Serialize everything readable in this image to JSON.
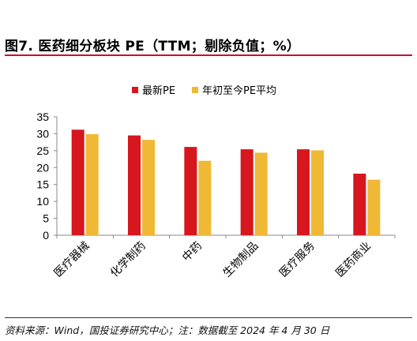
{
  "header": {
    "title": "图7. 医药细分板块 PE（TTM；剔除负值；%）"
  },
  "footer": {
    "source": "资料来源：Wind，国投证券研究中心；注：数据截至 2024 年 4 月 30 日"
  },
  "colors": {
    "accent": "#c8102e",
    "series_latest": "#d7161d",
    "series_ytd": "#efb936"
  },
  "chart_data": {
    "type": "bar",
    "categories": [
      "医疗器械",
      "化学制药",
      "中药",
      "生物制品",
      "医疗服务",
      "医药商业"
    ],
    "series": [
      {
        "name": "最新PE",
        "values": [
          31.2,
          29.5,
          26.1,
          25.4,
          25.4,
          18.2
        ]
      },
      {
        "name": "年初至今PE平均",
        "values": [
          29.9,
          28.2,
          22.0,
          24.4,
          25.1,
          16.4
        ]
      }
    ],
    "ylim": [
      0,
      35
    ],
    "yticks": [
      0,
      5,
      10,
      15,
      20,
      25,
      30,
      35
    ],
    "title": "",
    "xlabel": "",
    "ylabel": "",
    "legend_position": "top-center",
    "grid": false
  }
}
